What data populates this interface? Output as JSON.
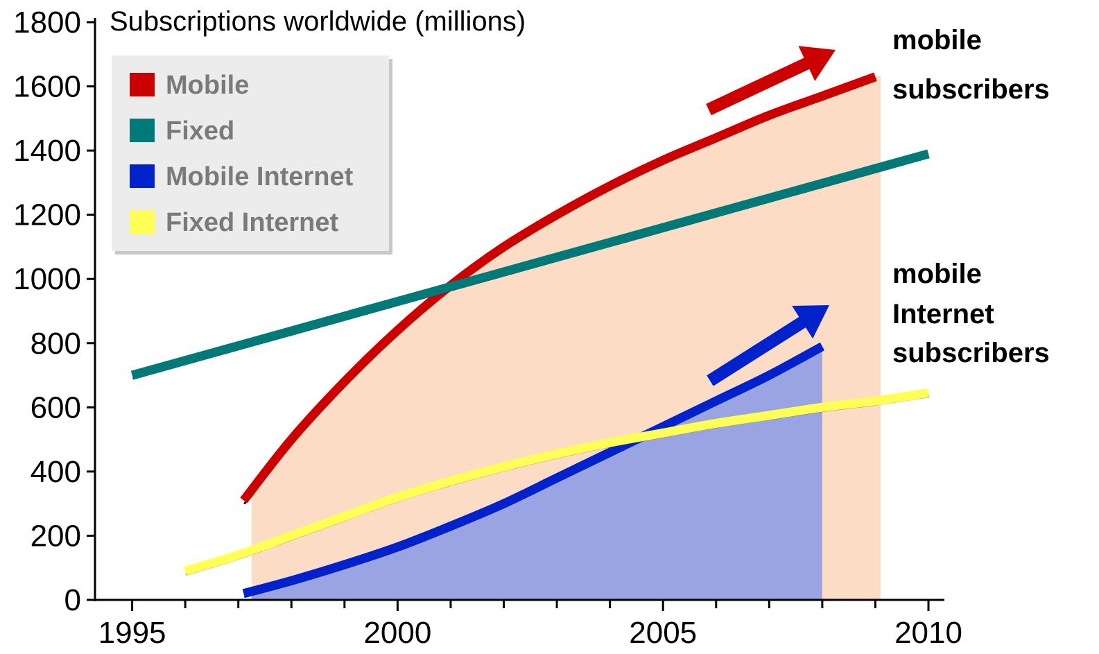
{
  "chart_data": {
    "type": "line",
    "title": "Subscriptions worldwide (millions)",
    "xlabel": "",
    "ylabel": "",
    "xlim": [
      1994.3,
      2010.3
    ],
    "ylim": [
      0,
      1800
    ],
    "x_ticks": [
      1995,
      2000,
      2005,
      2010
    ],
    "y_ticks": [
      0,
      200,
      400,
      600,
      800,
      1000,
      1200,
      1400,
      1600,
      1800
    ],
    "grid": false,
    "legend_position": "top-left",
    "series": [
      {
        "name": "Mobile",
        "color": "#cc0000",
        "x": [
          1997.1,
          1998,
          1999,
          2000,
          2001,
          2002,
          2003,
          2004,
          2005,
          2006,
          2007,
          2008,
          2009
        ],
        "values": [
          310,
          500,
          680,
          840,
          980,
          1100,
          1200,
          1290,
          1370,
          1440,
          1510,
          1570,
          1630
        ]
      },
      {
        "name": "Fixed",
        "color": "#007a78",
        "x": [
          1995,
          2010
        ],
        "values": [
          700,
          1390
        ]
      },
      {
        "name": "Mobile Internet",
        "color": "#0022cc",
        "x": [
          1997.1,
          1998,
          1999,
          2000,
          2001,
          2002,
          2003,
          2004,
          2005,
          2006,
          2007,
          2008
        ],
        "values": [
          20,
          60,
          110,
          165,
          230,
          300,
          380,
          460,
          540,
          620,
          700,
          790
        ]
      },
      {
        "name": "Fixed Internet",
        "color": "#ffff55",
        "x": [
          1996,
          1997,
          1998,
          1999,
          2000,
          2001,
          2002,
          2003,
          2004,
          2005,
          2006,
          2007,
          2008,
          2009,
          2010
        ],
        "values": [
          90,
          140,
          200,
          260,
          320,
          370,
          415,
          455,
          490,
          520,
          550,
          575,
          600,
          620,
          645
        ]
      }
    ],
    "shaded_areas": [
      {
        "series": "Mobile",
        "x_end": 2009.1,
        "color": "#fcdcc4"
      },
      {
        "series": "Mobile Internet",
        "x_end": 2008,
        "color": "#9aa4e2"
      }
    ],
    "annotations": [
      {
        "lines": [
          "mobile",
          "subscribers"
        ],
        "arrow_color": "#cc0000"
      },
      {
        "lines": [
          "mobile",
          "Internet",
          "subscribers"
        ],
        "arrow_color": "#0022cc"
      }
    ]
  }
}
